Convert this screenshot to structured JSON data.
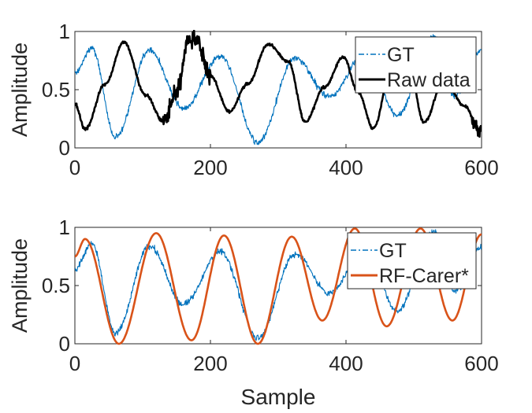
{
  "chart_data": [
    {
      "type": "line",
      "title": "",
      "xlabel": "",
      "ylabel": "Amplitude",
      "xlim": [
        0,
        600
      ],
      "ylim": [
        0,
        1
      ],
      "xticks": [
        0,
        200,
        400,
        600
      ],
      "yticks": [
        0,
        0.5,
        1
      ],
      "xtick_labels": [
        "0",
        "200",
        "400",
        "600"
      ],
      "ytick_labels": [
        "0",
        "0.5",
        "1"
      ],
      "grid": false,
      "legend_position": "top-right",
      "series": [
        {
          "name": "GT",
          "color": "#0072bd",
          "style": "dash-dot",
          "x": [
            0,
            25,
            60,
            110,
            160,
            215,
            270,
            325,
            375,
            430,
            475,
            530,
            560,
            600
          ],
          "y": [
            0.64,
            0.86,
            0.09,
            0.84,
            0.34,
            0.79,
            0.05,
            0.77,
            0.44,
            0.82,
            0.28,
            0.96,
            0.45,
            0.83
          ]
        },
        {
          "name": "Raw data",
          "color": "#000000",
          "style": "solid-thick",
          "x": [
            0,
            15,
            45,
            72,
            105,
            130,
            150,
            168,
            180,
            200,
            228,
            255,
            285,
            315,
            340,
            368,
            396,
            418,
            440,
            470,
            492,
            515,
            545,
            575,
            598
          ],
          "y": [
            0.38,
            0.16,
            0.55,
            0.91,
            0.45,
            0.23,
            0.48,
            0.94,
            0.92,
            0.62,
            0.31,
            0.55,
            0.89,
            0.74,
            0.22,
            0.52,
            0.78,
            0.48,
            0.17,
            0.75,
            0.72,
            0.22,
            0.58,
            0.36,
            0.14
          ]
        }
      ]
    },
    {
      "type": "line",
      "title": "",
      "xlabel": "Sample",
      "ylabel": "Amplitude",
      "xlim": [
        0,
        600
      ],
      "ylim": [
        0,
        1
      ],
      "xticks": [
        0,
        200,
        400,
        600
      ],
      "yticks": [
        0,
        0.5,
        1
      ],
      "xtick_labels": [
        "0",
        "200",
        "400",
        "600"
      ],
      "ytick_labels": [
        "0",
        "0.5",
        "1"
      ],
      "grid": false,
      "legend_position": "top-right",
      "series": [
        {
          "name": "GT",
          "color": "#0072bd",
          "style": "dash-dot",
          "x": [
            0,
            25,
            60,
            110,
            160,
            215,
            270,
            325,
            375,
            430,
            475,
            530,
            560,
            600
          ],
          "y": [
            0.64,
            0.86,
            0.09,
            0.84,
            0.34,
            0.79,
            0.05,
            0.77,
            0.44,
            0.82,
            0.28,
            0.96,
            0.45,
            0.83
          ]
        },
        {
          "name": "RF-Carer*",
          "color": "#d95319",
          "style": "solid-thick",
          "x": [
            0,
            15,
            65,
            120,
            172,
            220,
            270,
            320,
            365,
            413,
            460,
            510,
            557,
            600
          ],
          "y": [
            0.75,
            0.9,
            0.0,
            0.95,
            0.03,
            0.93,
            0.0,
            0.92,
            0.2,
            0.99,
            0.15,
            0.99,
            0.2,
            0.94
          ]
        }
      ]
    }
  ]
}
